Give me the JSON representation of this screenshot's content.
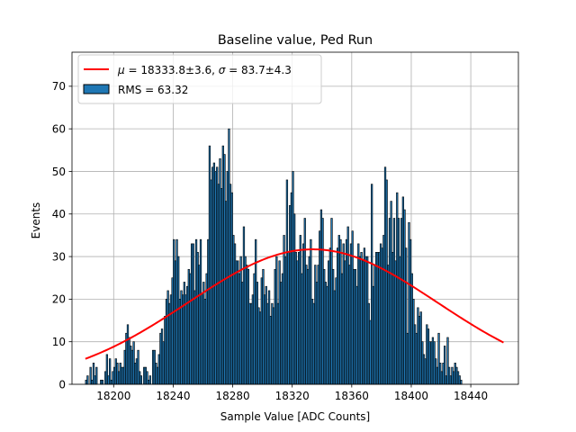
{
  "chart_data": {
    "type": "bar",
    "title": "Baseline value, Ped Run",
    "xlabel": "Sample Value [ADC Counts]",
    "ylabel": "Events",
    "xlim": [
      18172,
      18472
    ],
    "ylim": [
      0,
      78
    ],
    "xticks": [
      18200,
      18240,
      18280,
      18320,
      18360,
      18400,
      18440
    ],
    "yticks": [
      0,
      10,
      20,
      30,
      40,
      50,
      60,
      70
    ],
    "grid": true,
    "legend_position": "top-left",
    "bin_start": 18181,
    "bin_width": 1,
    "bar_color": "#1f77b4",
    "edge_color": "#000000",
    "fit_color": "#ff0000",
    "series": [
      {
        "name": "RMS = 63.32",
        "values": [
          1,
          2,
          0,
          4,
          1,
          5,
          2,
          4,
          0,
          0,
          1,
          1,
          0,
          3,
          7,
          2,
          6,
          1,
          3,
          4,
          6,
          5,
          3,
          5,
          4,
          4,
          8,
          12,
          14,
          11,
          9,
          8,
          10,
          5,
          6,
          8,
          3,
          2,
          0,
          4,
          4,
          3,
          1,
          2,
          0,
          8,
          8,
          5,
          4,
          7,
          12,
          13,
          10,
          16,
          20,
          22,
          19,
          21,
          25,
          34,
          29,
          34,
          30,
          20,
          22,
          21,
          24,
          21,
          23,
          27,
          26,
          33,
          33,
          22,
          34,
          31,
          28,
          34,
          21,
          24,
          20,
          26,
          34,
          56,
          48,
          51,
          52,
          50,
          51,
          47,
          53,
          46,
          56,
          54,
          43,
          50,
          60,
          47,
          45,
          35,
          33,
          29,
          29,
          26,
          30,
          24,
          37,
          30,
          28,
          27,
          19,
          19,
          21,
          26,
          34,
          24,
          18,
          17,
          25,
          27,
          21,
          23,
          19,
          22,
          16,
          19,
          18,
          27,
          30,
          19,
          29,
          24,
          26,
          35,
          30,
          48,
          31,
          42,
          45,
          50,
          40,
          31,
          29,
          31,
          35,
          26,
          33,
          39,
          28,
          27,
          30,
          34,
          20,
          19,
          28,
          24,
          28,
          36,
          41,
          39,
          27,
          24,
          23,
          29,
          32,
          39,
          27,
          22,
          25,
          32,
          35,
          34,
          26,
          33,
          29,
          34,
          37,
          28,
          33,
          36,
          27,
          27,
          23,
          33,
          30,
          31,
          29,
          32,
          30,
          30,
          19,
          15,
          47,
          23,
          28,
          31,
          31,
          31,
          33,
          32,
          35,
          51,
          48,
          28,
          39,
          43,
          31,
          39,
          29,
          45,
          39,
          30,
          39,
          44,
          41,
          32,
          12,
          38,
          34,
          26,
          20,
          14,
          12,
          18,
          16,
          17,
          10,
          7,
          6,
          14,
          13,
          10,
          10,
          11,
          10,
          6,
          4,
          12,
          5,
          3,
          5,
          9,
          2,
          11,
          4,
          2,
          4,
          3,
          5,
          4,
          3,
          2,
          1
        ]
      }
    ],
    "fit": {
      "type": "gaussian",
      "legend_label_prefix": "μ",
      "legend_label_mu": " = 18333.8±3.6, ",
      "legend_label_sigma_prefix": "σ",
      "legend_label_sigma": " = 83.7±4.3",
      "mu": 18333.8,
      "sigma": 83.7,
      "amplitude": 31.7,
      "x_range": [
        18181,
        18462
      ]
    }
  }
}
